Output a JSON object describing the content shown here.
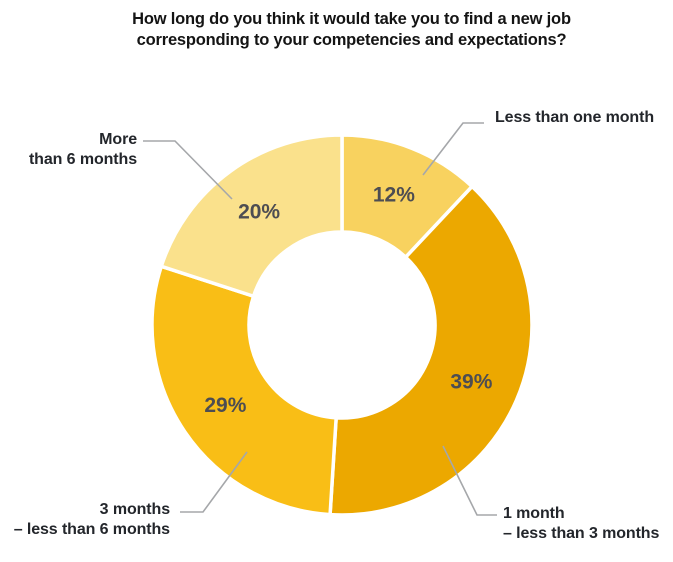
{
  "chart_data": {
    "type": "pie",
    "subtype": "donut",
    "title": "How long do you think it would take you to find a new job corresponding to your competencies and expectations?",
    "title_lines": [
      "How long do you think it would take you to find a new job",
      "corresponding to your competencies and expectations?"
    ],
    "unit": "%",
    "total": 100,
    "start_at": "12-o-clock",
    "direction": "clockwise",
    "legend_position": "callouts-with-leader-lines",
    "segments": [
      {
        "slug": "less-than-one-month",
        "label": "Less than one month",
        "value": 12,
        "pct_label": "12%",
        "color": "#F8D25F",
        "callout_lines": [
          "Less than one month"
        ]
      },
      {
        "slug": "1-month-less-than-3-months",
        "label": "1 month – less than 3 months",
        "value": 39,
        "pct_label": "39%",
        "color": "#ECA800",
        "callout_lines": [
          "1 month",
          "– less than 3 months"
        ]
      },
      {
        "slug": "3-months-less-than-6-months",
        "label": "3 months – less than 6 months",
        "value": 29,
        "pct_label": "29%",
        "color": "#F9BE16",
        "callout_lines": [
          "3 months",
          "– less than 6 months"
        ]
      },
      {
        "slug": "more-than-6-months",
        "label": "More than 6 months",
        "value": 20,
        "pct_label": "20%",
        "color": "#FAE18C",
        "callout_lines": [
          "More",
          "than 6 months"
        ]
      }
    ],
    "colors": {
      "title": "#141414",
      "percent_label": "#4D4D52",
      "callout_label": "#23262B",
      "leader_line": "#A5A7AA",
      "segment_gap": "#FFFFFF",
      "background": "#FFFFFF"
    }
  }
}
